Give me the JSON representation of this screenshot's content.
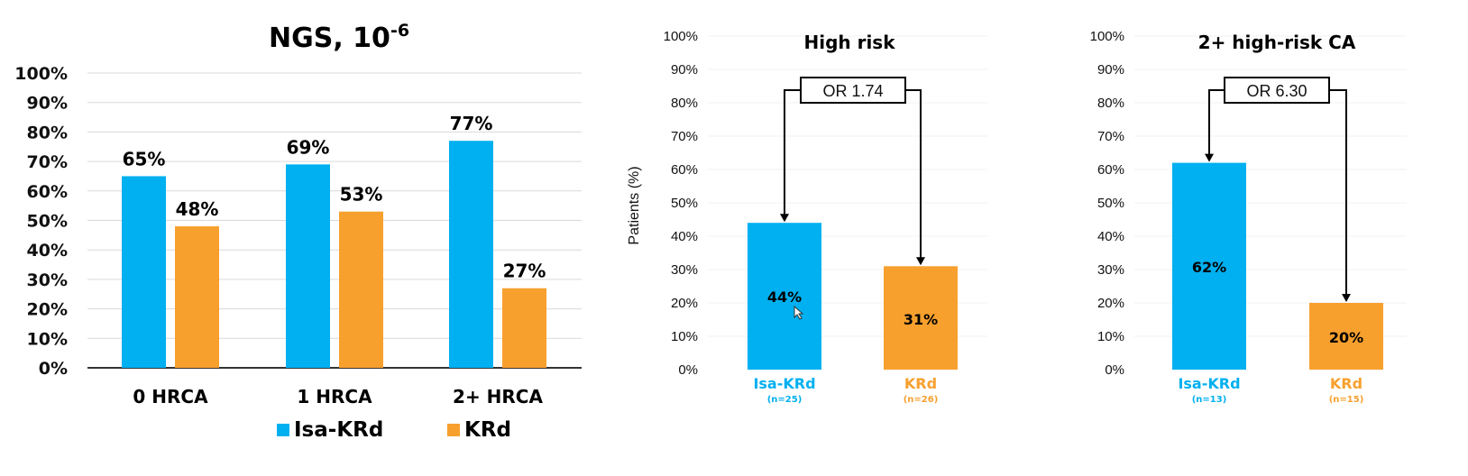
{
  "colors": {
    "isa": "#00B0F0",
    "krd": "#F7A02E",
    "grid": "#d9d9d9",
    "axis": "#333333"
  },
  "chart_data": [
    {
      "type": "bar",
      "title": "NGS, 10",
      "title_superscript": "-6",
      "categories": [
        "0 HRCA",
        "1 HRCA",
        "2+ HRCA"
      ],
      "series": [
        {
          "name": "Isa-KRd",
          "values": [
            65,
            69,
            77
          ],
          "labels": [
            "65%",
            "69%",
            "77%"
          ]
        },
        {
          "name": "KRd",
          "values": [
            48,
            53,
            27
          ],
          "labels": [
            "48%",
            "53%",
            "27%"
          ]
        }
      ],
      "yticks": [
        "0%",
        "10%",
        "20%",
        "30%",
        "40%",
        "50%",
        "60%",
        "70%",
        "80%",
        "90%",
        "100%"
      ],
      "ylim": [
        0,
        100
      ],
      "legend": "bottom",
      "grid": true
    },
    {
      "type": "bar",
      "title": "High risk",
      "ylabel": "Patients (%)",
      "categories": [
        "Isa-KRd",
        "KRd"
      ],
      "sublabels": [
        "(n=25)",
        "(n=26)"
      ],
      "values": [
        44,
        31
      ],
      "labels": [
        "44%",
        "31%"
      ],
      "annotation": "OR 1.74",
      "yticks": [
        "0%",
        "10%",
        "20%",
        "30%",
        "40%",
        "50%",
        "60%",
        "70%",
        "80%",
        "90%",
        "100%"
      ],
      "ylim": [
        0,
        100
      ],
      "grid": true
    },
    {
      "type": "bar",
      "title": "2+ high-risk CA",
      "categories": [
        "Isa-KRd",
        "KRd"
      ],
      "sublabels": [
        "(n=13)",
        "(n=15)"
      ],
      "values": [
        62,
        20
      ],
      "labels": [
        "62%",
        "20%"
      ],
      "annotation": "OR 6.30",
      "yticks": [
        "0%",
        "10%",
        "20%",
        "30%",
        "40%",
        "50%",
        "60%",
        "70%",
        "80%",
        "90%",
        "100%"
      ],
      "ylim": [
        0,
        100
      ],
      "grid": true
    }
  ]
}
